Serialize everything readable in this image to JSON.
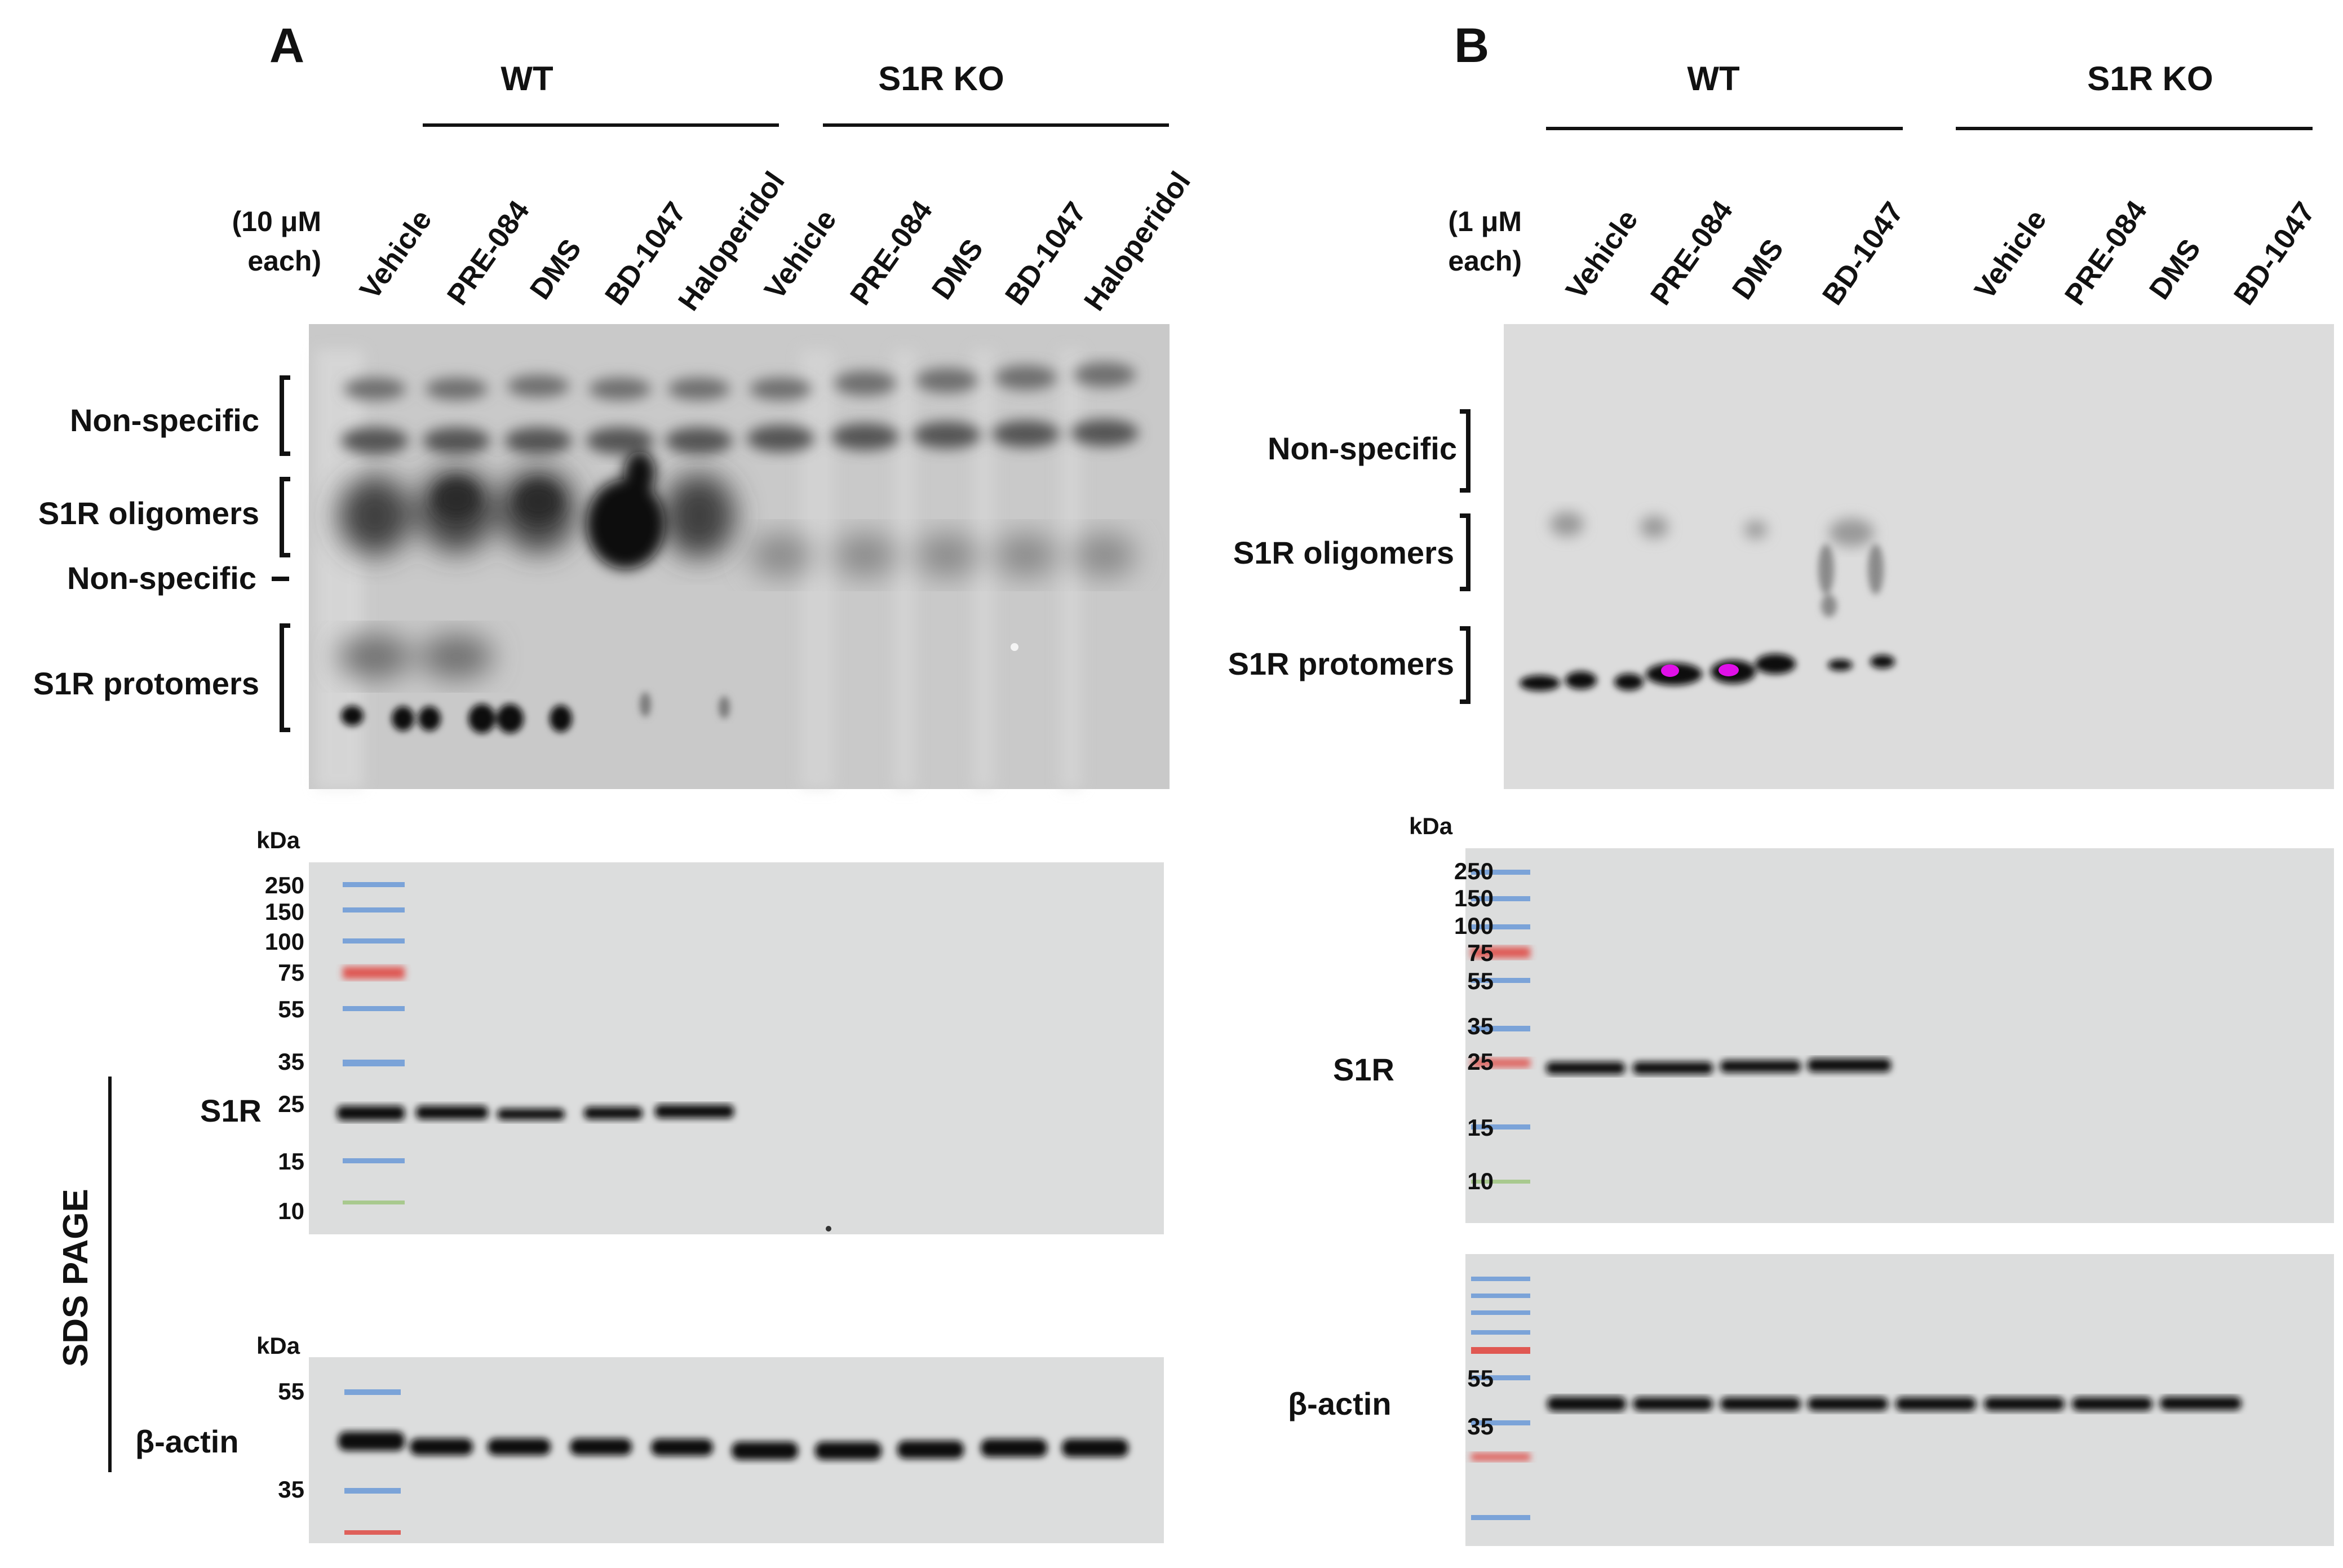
{
  "panels": [
    {
      "letter": "A",
      "group_labels": [
        "WT",
        "S1R KO"
      ],
      "concentration_lines": [
        "(10 μM",
        "each)"
      ],
      "lanes": [
        "Vehicle",
        "PRE-084",
        "DMS",
        "BD-1047",
        "Haloperidol",
        "Vehicle",
        "PRE-084",
        "DMS",
        "BD-1047",
        "Haloperidol"
      ],
      "native_labels": [
        "Non-specific",
        "S1R oligomers",
        "Non-specific",
        "S1R protomers"
      ],
      "kda_label": "kDa",
      "s1r_markers": [
        "250",
        "150",
        "100",
        "75",
        "55",
        "35",
        "25",
        "15",
        "10"
      ],
      "s1r_label": "S1R",
      "actin_markers": [
        "55",
        "35"
      ],
      "actin_label": "β-actin",
      "sds_label": "SDS PAGE"
    },
    {
      "letter": "B",
      "group_labels": [
        "WT",
        "S1R KO"
      ],
      "concentration_lines": [
        "(1 μM",
        "each)"
      ],
      "lanes": [
        "Vehicle",
        "PRE-084",
        "DMS",
        "BD-1047",
        "Vehicle",
        "PRE-084",
        "DMS",
        "BD-1047"
      ],
      "native_labels": [
        "Non-specific",
        "S1R oligomers",
        "S1R protomers"
      ],
      "kda_label": "kDa",
      "s1r_markers": [
        "250",
        "150",
        "100",
        "75",
        "55",
        "35",
        "25",
        "15",
        "10"
      ],
      "s1r_label": "S1R",
      "actin_markers": [
        "55",
        "35"
      ],
      "actin_label": "β-actin"
    }
  ],
  "colors": {
    "blot_native": "#c9c9c9",
    "blot_sds": "#dcdddd",
    "band": "#0a0a0a",
    "ladder_blue": "#5b8fd6",
    "ladder_red": "#e0413a",
    "ladder_green": "#9bc47a",
    "saturation": "#e010e8"
  }
}
